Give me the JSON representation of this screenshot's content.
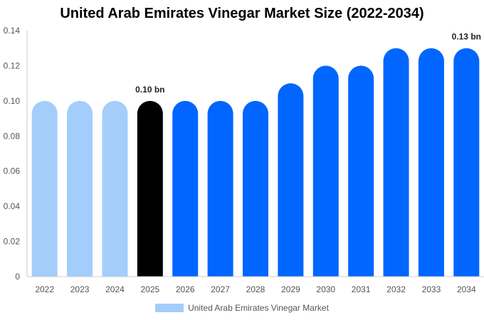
{
  "chart_data": {
    "type": "bar",
    "title": "United Arab Emirates Vinegar Market Size (2022-2034)",
    "categories": [
      "2022",
      "2023",
      "2024",
      "2025",
      "2026",
      "2027",
      "2028",
      "2029",
      "2030",
      "2031",
      "2032",
      "2033",
      "2034"
    ],
    "values": [
      0.1,
      0.1,
      0.1,
      0.1,
      0.1,
      0.1,
      0.1,
      0.11,
      0.12,
      0.12,
      0.13,
      0.13,
      0.13
    ],
    "bar_colors": [
      "#a3cdfb",
      "#a3cdfb",
      "#a3cdfb",
      "#000000",
      "#0066ff",
      "#0066ff",
      "#0066ff",
      "#0066ff",
      "#0066ff",
      "#0066ff",
      "#0066ff",
      "#0066ff",
      "#0066ff"
    ],
    "data_labels": [
      {
        "category": "2025",
        "text": "0.10 bn"
      },
      {
        "category": "2034",
        "text": "0.13 bn"
      }
    ],
    "yticks": [
      "0",
      "0.02",
      "0.04",
      "0.06",
      "0.08",
      "0.10",
      "0.12",
      "0.14"
    ],
    "ylim": [
      0,
      0.14
    ],
    "grid": false,
    "legend": {
      "position": "bottom",
      "label": "United Arab Emirates Vinegar Market",
      "color": "#a3cdfb"
    }
  }
}
